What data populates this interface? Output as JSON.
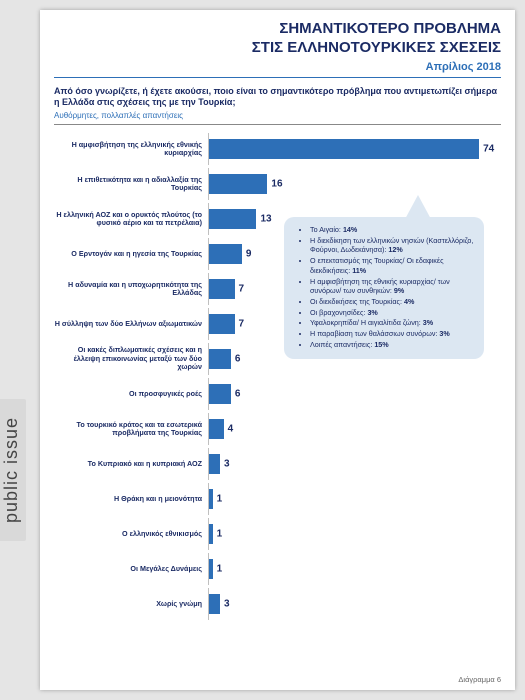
{
  "branding": {
    "sidebar_label": "public issue"
  },
  "header": {
    "title_line1": "ΣΗΜΑΝΤΙΚΟΤΕΡΟ ΠΡΟΒΛΗΜΑ",
    "title_line2": "ΣΤΙΣ ΕΛΛΗΝΟΤΟΥΡΚΙΚΕΣ ΣΧΕΣΕΙΣ",
    "subtitle": "Απρίλιος 2018"
  },
  "question": {
    "text": "Από όσο γνωρίζετε, ή έχετε ακούσει, ποιο είναι το σημαντικότερο πρόβλημα που αντιμετωπίζει σήμερα η Ελλάδα στις σχέσεις της με την Τουρκία;",
    "note": "Αυθόρμητες, πολλαπλές απαντήσεις"
  },
  "chart": {
    "type": "bar",
    "bar_color": "#2d6fb7",
    "label_color": "#1b2b64",
    "value_color": "#1b2b64",
    "background": "#ffffff",
    "xmax": 80,
    "bars": [
      {
        "label": "Η αμφισβήτηση της ελληνικής εθνικής κυριαρχίας",
        "value": 74
      },
      {
        "label": "Η επιθετικότητα και η αδιαλλαξία της Τουρκίας",
        "value": 16
      },
      {
        "label": "Η ελληνική ΑΟΖ και ο ορυκτός πλούτος (το φυσικό αέριο και τα πετρέλαια)",
        "value": 13
      },
      {
        "label": "Ο Ερντογάν και η ηγεσία της Τουρκίας",
        "value": 9
      },
      {
        "label": "Η αδυναμία και η υποχωρητικότητα της Ελλάδας",
        "value": 7
      },
      {
        "label": "Η σύλληψη των δύο Ελλήνων αξιωματικών",
        "value": 7
      },
      {
        "label": "Οι κακές διπλωματικές σχέσεις και η έλλειψη επικοινωνίας μεταξύ των δύο χωρών",
        "value": 6
      },
      {
        "label": "Οι προσφυγικές ροές",
        "value": 6
      },
      {
        "label": "Το τουρκικό κράτος και τα εσωτερικά προβλήματα της Τουρκίας",
        "value": 4
      },
      {
        "label": "Το Κυπριακό και η κυπριακή ΑΟΖ",
        "value": 3
      },
      {
        "label": "Η Θράκη και η μειονότητα",
        "value": 1
      },
      {
        "label": "Ο ελληνικός εθνικισμός",
        "value": 1
      },
      {
        "label": "Οι Μεγάλες Δυνάμεις",
        "value": 1
      },
      {
        "label": "Χωρίς γνώμη",
        "value": 3
      }
    ]
  },
  "callout": {
    "items": [
      {
        "text": "Το Αιγαίο:",
        "pct": "14%"
      },
      {
        "text": "Η διεκδίκηση των ελληνικών νησιών (Καστελλόριζο, Φούρνοι, Δωδεκάνησα):",
        "pct": "12%"
      },
      {
        "text": "Ο επεκτατισμός της Τουρκίας/ Οι εδαφικές διεκδικήσεις:",
        "pct": "11%"
      },
      {
        "text": "Η αμφισβήτηση της εθνικής κυριαρχίας/ των συνόρων/ των συνθηκών:",
        "pct": "9%"
      },
      {
        "text": "Οι διεκδικήσεις της Τουρκίας:",
        "pct": "4%"
      },
      {
        "text": "Οι βραχονησίδες:",
        "pct": "3%"
      },
      {
        "text": "Υφαλοκρηπίδα/ Η αιγιαλίτιδα ζώνη:",
        "pct": "3%"
      },
      {
        "text": "Η παραβίαση των θαλάσσιων συνόρων:",
        "pct": "3%"
      },
      {
        "text": "Λοιπές απαντήσεις:",
        "pct": "15%"
      }
    ]
  },
  "footer": {
    "diagram_label": "Διάγραμμα 6"
  },
  "styling": {
    "page_bg": "#ffffff",
    "canvas_bg": "#e5e5e5",
    "title_color": "#1b2b64",
    "accent_color": "#2d6fb7",
    "callout_bg": "#dce7f2",
    "axis_color": "#bfbfbf",
    "fontsizes": {
      "title": 15,
      "subtitle": 11,
      "question": 9,
      "bar_label": 7.2,
      "value": 10,
      "callout": 7.2
    }
  }
}
